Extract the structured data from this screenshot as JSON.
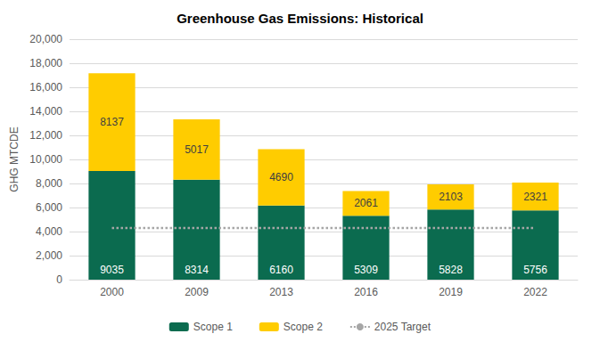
{
  "chart_data": {
    "type": "bar",
    "title": "Greenhouse Gas Emissions: Historical",
    "y_label": "GHG MTCDE",
    "categories": [
      "2000",
      "2009",
      "2013",
      "2016",
      "2019",
      "2022"
    ],
    "stacked": true,
    "series": [
      {
        "name": "Scope 1",
        "type": "bar",
        "color": "#0b6b4f",
        "data_labels": true,
        "values": [
          9035,
          8314,
          6160,
          5309,
          5828,
          5756
        ]
      },
      {
        "name": "Scope 2",
        "type": "bar",
        "color": "#ffcc00",
        "data_labels": true,
        "values": [
          8137,
          5017,
          4690,
          2061,
          2103,
          2321
        ]
      },
      {
        "name": "2025 Target",
        "type": "line",
        "color": "#a6a6a6",
        "line_style": "dotted",
        "data_labels": false,
        "values": [
          4300,
          4300,
          4300,
          4300,
          4300,
          4300
        ]
      }
    ],
    "ylim": [
      0,
      20000
    ],
    "yticks": [
      0,
      {
        "value": 2000,
        "label": "2,000"
      },
      {
        "value": 4000,
        "label": "4,000"
      },
      {
        "value": 6000,
        "label": "6,000"
      },
      {
        "value": 8000,
        "label": "8,000"
      },
      {
        "value": 10000,
        "label": "10,000"
      },
      {
        "value": 12000,
        "label": "12,000"
      },
      {
        "value": 14000,
        "label": "14,000"
      },
      {
        "value": 16000,
        "label": "16,000"
      },
      {
        "value": 18000,
        "label": "18,000"
      },
      {
        "value": 20000,
        "label": "20,000"
      }
    ],
    "grid": true,
    "legend": "bottom"
  }
}
